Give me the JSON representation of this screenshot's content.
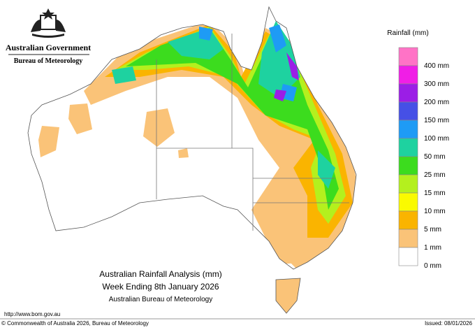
{
  "header": {
    "government": "Australian Government",
    "bureau": "Bureau of Meteorology"
  },
  "legend": {
    "title": "Rainfall (mm)",
    "items": [
      {
        "label": "400 mm",
        "color": "#ff73c6"
      },
      {
        "label": "300 mm",
        "color": "#f01ee6"
      },
      {
        "label": "200 mm",
        "color": "#9b1ee6"
      },
      {
        "label": "150 mm",
        "color": "#4650e6"
      },
      {
        "label": "100 mm",
        "color": "#1e9bf5"
      },
      {
        "label": "50 mm",
        "color": "#1ed2a0"
      },
      {
        "label": "25 mm",
        "color": "#3cdc1e"
      },
      {
        "label": "15 mm",
        "color": "#b4f01e"
      },
      {
        "label": "10 mm",
        "color": "#fafa00"
      },
      {
        "label": "5 mm",
        "color": "#fab400"
      },
      {
        "label": "1 mm",
        "color": "#fac378"
      },
      {
        "label": "0 mm",
        "color": "#ffffff"
      }
    ]
  },
  "title": {
    "line1": "Australian Rainfall Analysis (mm)",
    "line2": "Week Ending 8th January 2026",
    "line3": "Australian Bureau of Meteorology"
  },
  "footer": {
    "url": "http://www.bom.gov.au",
    "copyright": "© Commonwealth of Australia 2026, Bureau of Meteorology",
    "issued": "Issued: 08/01/2026"
  }
}
